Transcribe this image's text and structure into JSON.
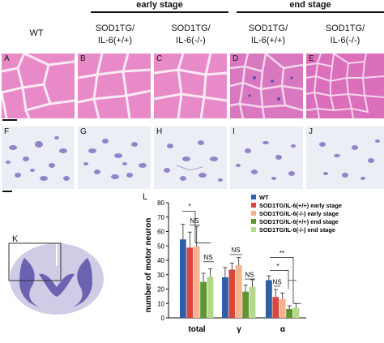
{
  "header": {
    "early_stage": "early stage",
    "end_stage": "end stage",
    "columns": [
      "WT",
      "SOD1TG/\nIL-6(+/+)",
      "SOD1TG/\nIL-6(-/-)",
      "SOD1TG/\nIL-6(+/+)",
      "SOD1TG/\nIL-6(-/-)"
    ]
  },
  "panels": {
    "he_row": [
      "A",
      "B",
      "C",
      "D",
      "E"
    ],
    "nissl_row": [
      "F",
      "G",
      "H",
      "I",
      "J"
    ],
    "spinal_cord": "K",
    "chart": "L"
  },
  "colors": {
    "he_stain": "#e88ac8",
    "nissl_stain": "#8e86c8",
    "wt": "#2e5fa8",
    "early_pp": "#d9453f",
    "early_mm": "#f4b38e",
    "end_pp": "#5f9432",
    "end_mm": "#b5d98a"
  },
  "chart_data": {
    "type": "bar",
    "categories": [
      "total",
      "γ",
      "α"
    ],
    "ylabel": "number of motor neuron",
    "ylim": [
      0,
      80
    ],
    "yticks": [
      0,
      10,
      20,
      30,
      40,
      50,
      60,
      70,
      80
    ],
    "legend_position": "top-right",
    "series": [
      {
        "name": "WT",
        "values": [
          54.5,
          28.2,
          26.2
        ],
        "errors": [
          10.5,
          6.8,
          3.0
        ]
      },
      {
        "name": "SOD1TG/IL-6(+/+) early stage",
        "values": [
          48.8,
          33.5,
          14.5
        ],
        "errors": [
          10.8,
          4.5,
          5.2
        ]
      },
      {
        "name": "SOD1TG/IL-6(-/-)  early stage",
        "values": [
          49.8,
          36.5,
          13.0
        ],
        "errors": [
          13.5,
          5.5,
          4.3
        ]
      },
      {
        "name": "SOD1TG/IL-6(+/+) end stage",
        "values": [
          25.0,
          18.2,
          6.2
        ],
        "errors": [
          6.0,
          4.5,
          2.2
        ]
      },
      {
        "name": "SOD1TG/IL-6(-/-)  end stage",
        "values": [
          28.5,
          21.5,
          7.2
        ],
        "errors": [
          5.5,
          5.0,
          2.8
        ]
      }
    ],
    "annotations": [
      "*",
      "NS",
      "NS",
      "NS",
      "NS",
      "NS",
      "*",
      "**"
    ]
  }
}
